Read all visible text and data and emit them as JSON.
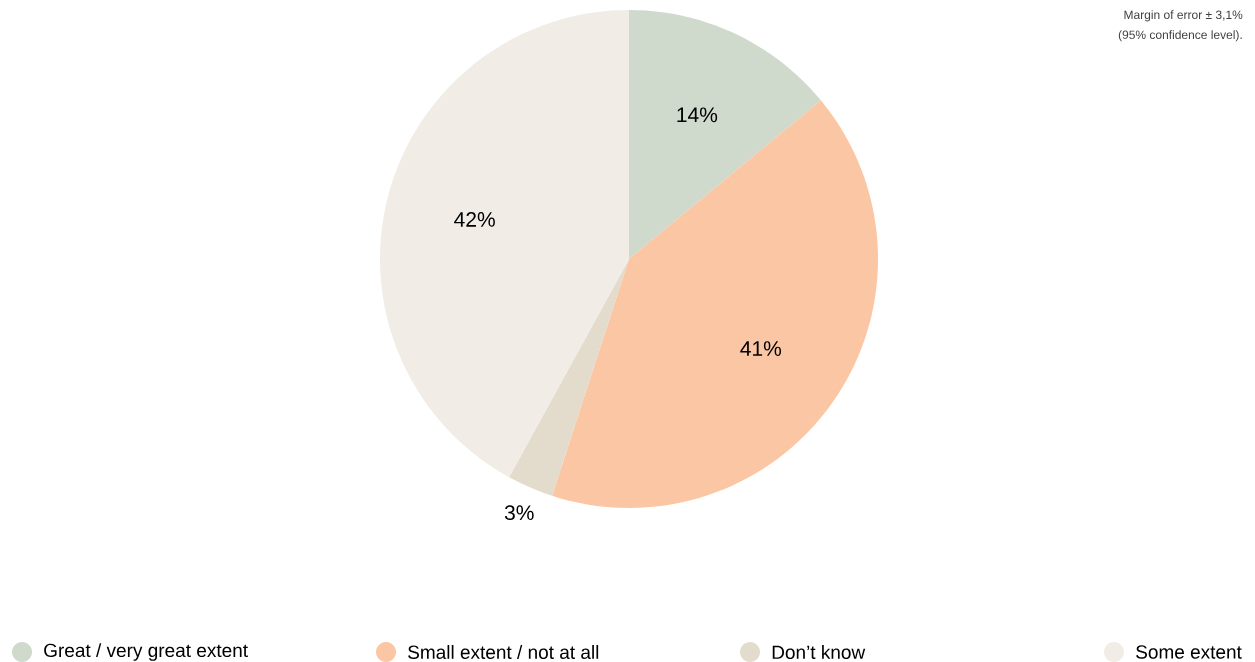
{
  "chart_data": {
    "type": "pie",
    "categories": [
      "Great / very great extent",
      "Small extent / not at all",
      "Don’t know",
      "Some extent"
    ],
    "values": [
      14,
      41,
      3,
      42
    ],
    "colors": [
      "#cfd9cc",
      "#fbc6a4",
      "#e3dccc",
      "#f1ece5"
    ],
    "value_labels": [
      "14%",
      "41%",
      "3%",
      "42%"
    ],
    "legend": "bottom",
    "annotations": [
      "Margin of error ± 3,1%",
      "(95% confidence level)."
    ]
  }
}
